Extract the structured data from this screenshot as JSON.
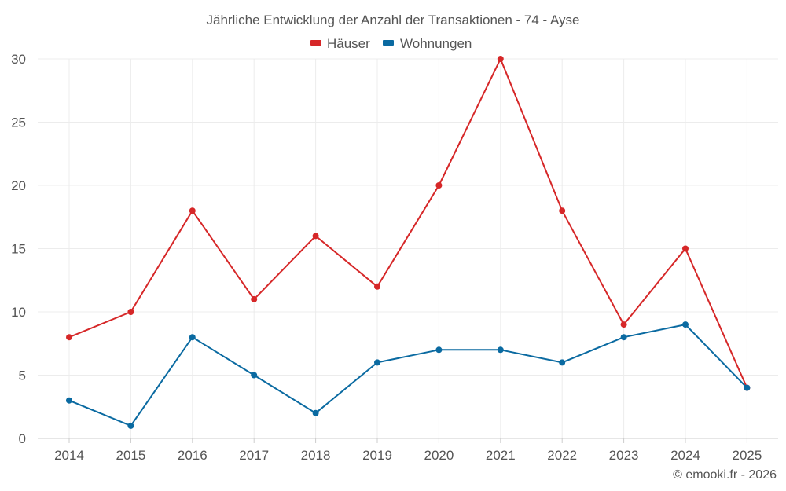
{
  "chart_data": {
    "type": "line",
    "title": "Jährliche Entwicklung der Anzahl der Transaktionen - 74 - Ayse",
    "categories": [
      "2014",
      "2015",
      "2016",
      "2017",
      "2018",
      "2019",
      "2020",
      "2021",
      "2022",
      "2023",
      "2024",
      "2025"
    ],
    "series": [
      {
        "name": "Häuser",
        "color": "#d62728",
        "values": [
          8,
          10,
          18,
          11,
          16,
          12,
          20,
          30,
          18,
          9,
          15,
          4
        ]
      },
      {
        "name": "Wohnungen",
        "color": "#0a6aa1",
        "values": [
          3,
          1,
          8,
          5,
          2,
          6,
          7,
          7,
          6,
          8,
          9,
          4
        ]
      }
    ],
    "ylim": [
      0,
      30
    ],
    "yticks": [
      "0",
      "5",
      "10",
      "15",
      "20",
      "25",
      "30"
    ],
    "grid": true,
    "legend_position": "top-center",
    "xlabel": "",
    "ylabel": ""
  },
  "credit": "© emooki.fr - 2026"
}
